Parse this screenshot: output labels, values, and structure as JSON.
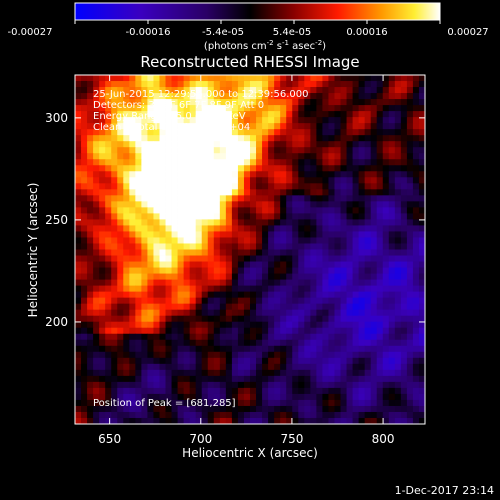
{
  "colorbar": {
    "ticks": [
      "-0.00027",
      "-0.00016",
      "-5.4e-05",
      "5.4e-05",
      "0.00016",
      "0.00027"
    ],
    "units_main": "(photons cm",
    "units_exp1": "-2",
    "units_mid": " s",
    "units_exp2": "-1",
    "units_tail": " asec",
    "units_exp3": "-2",
    "units_close": ")"
  },
  "title": "Reconstructed RHESSI Image",
  "annotations": {
    "line1": "25-Jun-2015 12:29:56.000 to 12:39:56.000",
    "line2": "Detectors: 3F 5F 6F 7F 8F 9F Att 0",
    "line3": "Energy Range: 25.0 - 50.0 keV",
    "line4": "Clean    Total counts: 1.56E+04",
    "peak": "Position of Peak = [681,285]"
  },
  "footer": {
    "date": "1-Dec-2017 23:14"
  },
  "colors": {
    "low": "#0000ff",
    "mid": "#000000",
    "high": "#ffffff"
  },
  "chart_data": {
    "type": "heatmap",
    "title": "Reconstructed RHESSI Image",
    "xlabel": "Heliocentric X (arcsec)",
    "ylabel": "Heliocentric Y (arcsec)",
    "xlim": [
      631,
      823
    ],
    "ylim": [
      150,
      321
    ],
    "xticks": [
      650,
      700,
      750,
      800
    ],
    "yticks": [
      200,
      250,
      300
    ],
    "colorbar_range": [
      -0.00027,
      0.00027
    ],
    "peak_position": [
      681,
      285
    ],
    "grid": false
  }
}
